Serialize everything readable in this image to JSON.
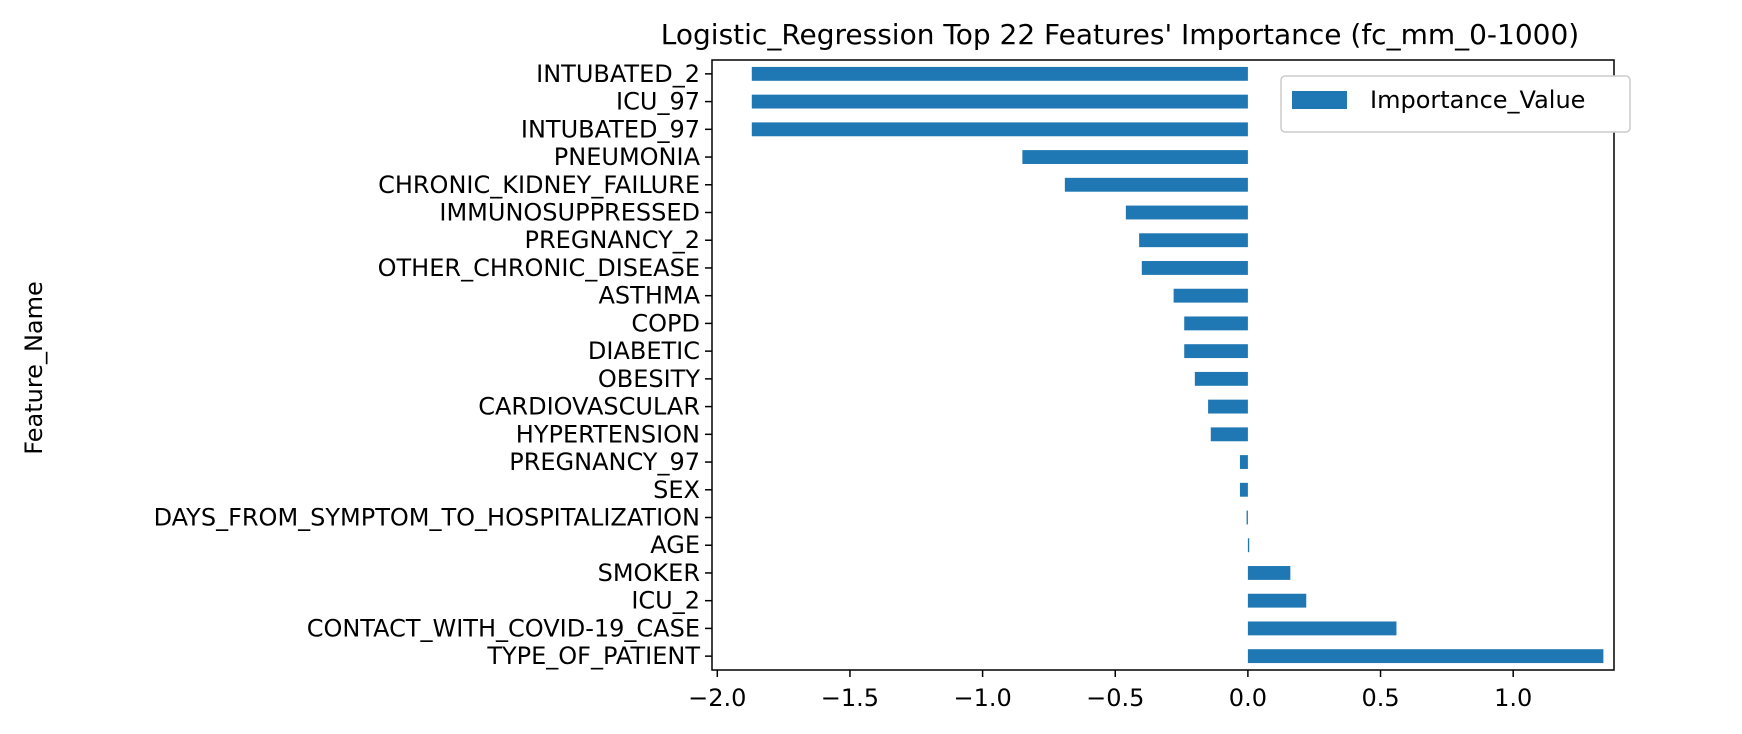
{
  "chart_data": {
    "type": "bar",
    "orientation": "horizontal",
    "title": "Logistic_Regression Top 22 Features' Importance (fc_mm_0-1000)",
    "xlabel": "",
    "ylabel": "Feature_Name",
    "xlim": [
      -2.02,
      1.38
    ],
    "xticks": [
      -2.0,
      -1.5,
      -1.0,
      -0.5,
      0.0,
      0.5,
      1.0
    ],
    "xtick_labels": [
      "−2.0",
      "−1.5",
      "−1.0",
      "−0.5",
      "0.0",
      "0.5",
      "1.0"
    ],
    "grid": false,
    "legend": {
      "placement": "top-right",
      "entries": [
        "Importance_Value"
      ]
    },
    "bar_color": "#1f77b4",
    "categories": [
      "INTUBATED_2",
      "ICU_97",
      "INTUBATED_97",
      "PNEUMONIA",
      "CHRONIC_KIDNEY_FAILURE",
      "IMMUNOSUPPRESSED",
      "PREGNANCY_2",
      "OTHER_CHRONIC_DISEASE",
      "ASTHMA",
      "COPD",
      "DIABETIC",
      "OBESITY",
      "CARDIOVASCULAR",
      "HYPERTENSION",
      "PREGNANCY_97",
      "SEX",
      "DAYS_FROM_SYMPTOM_TO_HOSPITALIZATION",
      "AGE",
      "SMOKER",
      "ICU_2",
      "CONTACT_WITH_COVID-19_CASE",
      "TYPE_OF_PATIENT"
    ],
    "series": [
      {
        "name": "Importance_Value",
        "values": [
          -1.87,
          -1.87,
          -1.87,
          -0.85,
          -0.69,
          -0.46,
          -0.41,
          -0.4,
          -0.28,
          -0.24,
          -0.24,
          -0.2,
          -0.15,
          -0.14,
          -0.03,
          -0.03,
          -0.005,
          0.005,
          0.16,
          0.22,
          0.56,
          1.34
        ]
      }
    ]
  }
}
